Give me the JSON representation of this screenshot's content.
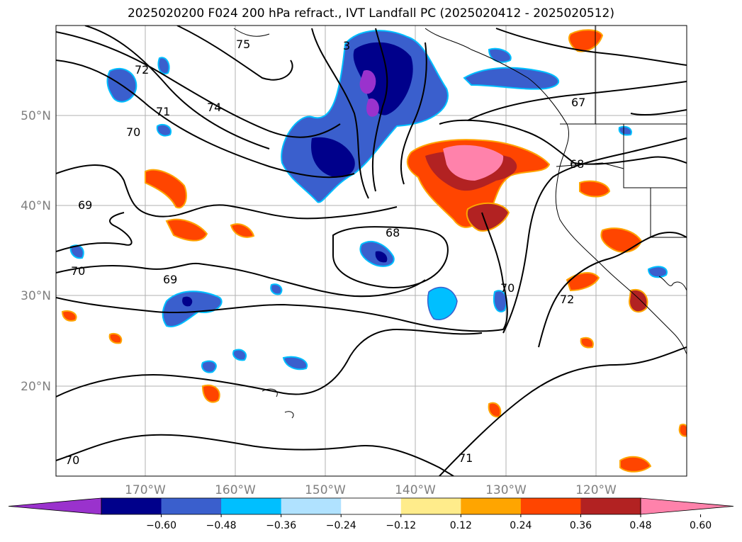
{
  "title": "2025020200 F024 200 hPa refract., IVT Landfall PC (2025020412 - 2025020512)",
  "lat_labels": [
    "50°N",
    "40°N",
    "30°N",
    "20°N"
  ],
  "lon_labels": [
    "170°W",
    "160°W",
    "150°W",
    "140°W",
    "130°W",
    "120°W"
  ],
  "contour_labels": [
    "75",
    "72",
    "71",
    "74",
    "70",
    "69",
    "68",
    "67",
    "68",
    "70",
    "69",
    "70",
    "72",
    "71",
    "70",
    "3"
  ],
  "colorbar": {
    "colors": [
      "#9a32cd",
      "#00008b",
      "#3a5fcd",
      "#00bfff",
      "#b0e2ff",
      "#ffffff",
      "#ffec8b",
      "#ffa500",
      "#ff4500",
      "#b22222",
      "#ff82ab"
    ],
    "tick_labels": [
      "−0.60",
      "−0.48",
      "−0.36",
      "−0.24",
      "−0.12",
      "0.12",
      "0.24",
      "0.36",
      "0.48",
      "0.60"
    ]
  }
}
